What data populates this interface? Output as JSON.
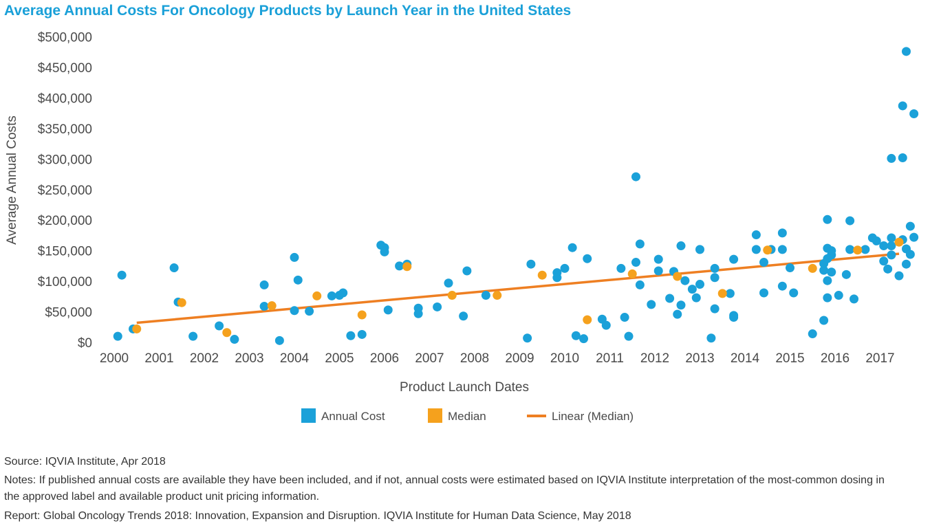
{
  "chart_data": {
    "type": "scatter",
    "title": "Average Annual Costs For Oncology Products by Launch Year in the United States",
    "xlabel": "Product Launch Dates",
    "ylabel": "Average Annual Costs",
    "xlim": [
      2000,
      2017.75
    ],
    "ylim": [
      0,
      500000
    ],
    "x_ticks": [
      "2000",
      "2001",
      "2002",
      "2003",
      "2004",
      "2005",
      "2006",
      "2007",
      "2008",
      "2009",
      "2010",
      "2011",
      "2012",
      "2013",
      "2014",
      "2015",
      "2016",
      "2017"
    ],
    "y_ticks": [
      "$0",
      "$50,000",
      "$100,000",
      "$150,000",
      "$200,000",
      "$250,000",
      "$300,000",
      "$350,000",
      "$400,000",
      "$450,000",
      "$500,000"
    ],
    "legend": [
      "Annual Cost",
      "Median",
      "Linear (Median)"
    ],
    "legend_position": "bottom",
    "colors": {
      "annual_cost": "#1ba1d9",
      "median": "#f5a11d",
      "linear": "#ee7f22"
    },
    "series": [
      {
        "name": "Annual Cost",
        "points": [
          [
            2000.08,
            10000
          ],
          [
            2000.17,
            110000
          ],
          [
            2000.42,
            22000
          ],
          [
            2001.33,
            122000
          ],
          [
            2001.42,
            66000
          ],
          [
            2001.75,
            10000
          ],
          [
            2002.33,
            27000
          ],
          [
            2002.67,
            5000
          ],
          [
            2003.33,
            59000
          ],
          [
            2003.33,
            94000
          ],
          [
            2003.67,
            3000
          ],
          [
            2004.0,
            52000
          ],
          [
            2004.0,
            139000
          ],
          [
            2004.08,
            102000
          ],
          [
            2004.33,
            51000
          ],
          [
            2004.83,
            76000
          ],
          [
            2005.0,
            77000
          ],
          [
            2005.08,
            81000
          ],
          [
            2005.25,
            11000
          ],
          [
            2005.5,
            13000
          ],
          [
            2005.92,
            159000
          ],
          [
            2006.0,
            155000
          ],
          [
            2006.0,
            148000
          ],
          [
            2006.08,
            53000
          ],
          [
            2006.33,
            125000
          ],
          [
            2006.5,
            128000
          ],
          [
            2006.75,
            56000
          ],
          [
            2006.75,
            47000
          ],
          [
            2007.17,
            58000
          ],
          [
            2007.42,
            97000
          ],
          [
            2007.75,
            43000
          ],
          [
            2007.83,
            117000
          ],
          [
            2008.25,
            77000
          ],
          [
            2009.17,
            7000
          ],
          [
            2009.25,
            128000
          ],
          [
            2009.83,
            114000
          ],
          [
            2009.83,
            106000
          ],
          [
            2010.0,
            121000
          ],
          [
            2010.17,
            155000
          ],
          [
            2010.25,
            11000
          ],
          [
            2010.42,
            6000
          ],
          [
            2010.5,
            137000
          ],
          [
            2010.83,
            38000
          ],
          [
            2010.92,
            28000
          ],
          [
            2011.25,
            121000
          ],
          [
            2011.33,
            41000
          ],
          [
            2011.42,
            10000
          ],
          [
            2011.58,
            131000
          ],
          [
            2011.58,
            271000
          ],
          [
            2011.67,
            94000
          ],
          [
            2011.67,
            161000
          ],
          [
            2011.92,
            62000
          ],
          [
            2012.08,
            136000
          ],
          [
            2012.08,
            117000
          ],
          [
            2012.33,
            72000
          ],
          [
            2012.42,
            116000
          ],
          [
            2012.5,
            46000
          ],
          [
            2012.58,
            158000
          ],
          [
            2012.58,
            61000
          ],
          [
            2012.67,
            101000
          ],
          [
            2012.83,
            87000
          ],
          [
            2012.92,
            73000
          ],
          [
            2013.0,
            152000
          ],
          [
            2013.0,
            95000
          ],
          [
            2013.25,
            7000
          ],
          [
            2013.33,
            121000
          ],
          [
            2013.33,
            106000
          ],
          [
            2013.33,
            55000
          ],
          [
            2013.67,
            80000
          ],
          [
            2013.75,
            136000
          ],
          [
            2013.75,
            44000
          ],
          [
            2013.75,
            41000
          ],
          [
            2014.25,
            176000
          ],
          [
            2014.25,
            152000
          ],
          [
            2014.42,
            131000
          ],
          [
            2014.42,
            81000
          ],
          [
            2014.58,
            152000
          ],
          [
            2014.83,
            179000
          ],
          [
            2014.83,
            152000
          ],
          [
            2014.83,
            92000
          ],
          [
            2015.0,
            122000
          ],
          [
            2015.08,
            81000
          ],
          [
            2015.5,
            14000
          ],
          [
            2015.75,
            36000
          ],
          [
            2015.75,
            118000
          ],
          [
            2015.75,
            129000
          ],
          [
            2015.83,
            201000
          ],
          [
            2015.83,
            154000
          ],
          [
            2015.83,
            137000
          ],
          [
            2015.83,
            101000
          ],
          [
            2015.83,
            73000
          ],
          [
            2015.92,
            150000
          ],
          [
            2015.92,
            143000
          ],
          [
            2015.92,
            115000
          ],
          [
            2016.08,
            77000
          ],
          [
            2016.25,
            111000
          ],
          [
            2016.33,
            152000
          ],
          [
            2016.33,
            199000
          ],
          [
            2016.42,
            71000
          ],
          [
            2016.67,
            152000
          ],
          [
            2016.83,
            171000
          ],
          [
            2016.92,
            166000
          ],
          [
            2017.08,
            158000
          ],
          [
            2017.08,
            133000
          ],
          [
            2017.17,
            120000
          ],
          [
            2017.25,
            143000
          ],
          [
            2017.25,
            158000
          ],
          [
            2017.25,
            171000
          ],
          [
            2017.25,
            301000
          ],
          [
            2017.42,
            109000
          ],
          [
            2017.5,
            387000
          ],
          [
            2017.5,
            302000
          ],
          [
            2017.5,
            168000
          ],
          [
            2017.58,
            476000
          ],
          [
            2017.58,
            153000
          ],
          [
            2017.58,
            128000
          ],
          [
            2017.67,
            190000
          ],
          [
            2017.67,
            144000
          ],
          [
            2017.75,
            374000
          ],
          [
            2017.75,
            172000
          ]
        ]
      },
      {
        "name": "Median",
        "points": [
          [
            2000.5,
            22000
          ],
          [
            2001.5,
            65000
          ],
          [
            2002.5,
            16000
          ],
          [
            2003.5,
            60000
          ],
          [
            2004.5,
            76000
          ],
          [
            2005.5,
            45000
          ],
          [
            2006.5,
            124000
          ],
          [
            2007.5,
            77000
          ],
          [
            2008.5,
            77000
          ],
          [
            2009.5,
            110000
          ],
          [
            2010.5,
            37000
          ],
          [
            2011.5,
            112000
          ],
          [
            2012.5,
            108000
          ],
          [
            2013.5,
            80000
          ],
          [
            2014.5,
            151000
          ],
          [
            2015.5,
            121000
          ],
          [
            2016.5,
            151000
          ],
          [
            2017.42,
            164000
          ]
        ]
      },
      {
        "name": "Linear (Median)",
        "line": [
          [
            2000.5,
            32000
          ],
          [
            2017.42,
            145000
          ]
        ]
      }
    ]
  },
  "footer": {
    "source": "Source: IQVIA Institute, Apr 2018",
    "notes": "Notes: If published annual costs are available they have been included, and if not, annual costs were estimated based on IQVIA Institute interpretation of the most-common dosing in the approved label and available product unit pricing information.",
    "report": "Report: Global Oncology Trends 2018: Innovation, Expansion and Disruption. IQVIA Institute for Human Data Science, May 2018"
  }
}
